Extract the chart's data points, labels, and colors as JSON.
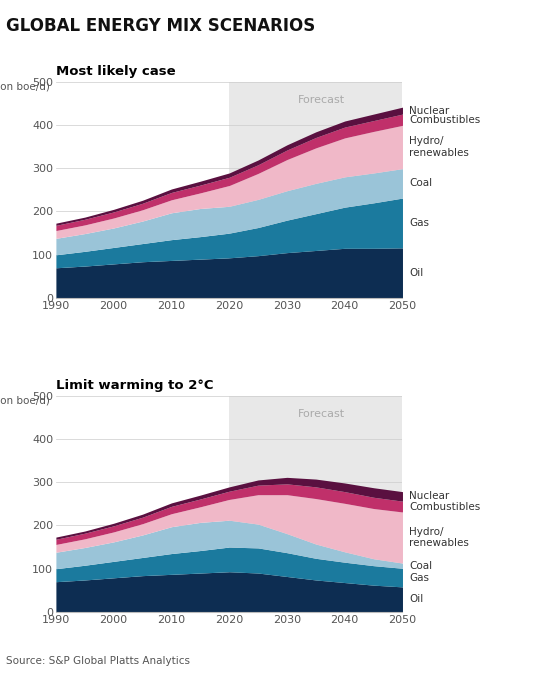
{
  "title": "GLOBAL ENERGY MIX SCENARIOS",
  "chart1_title": "Most likely case",
  "chart2_title": "Limit warming to 2°C",
  "ylabel": "(million boe/d)",
  "source": "Source: S&P Global Platts Analytics",
  "forecast_label": "Forecast",
  "forecast_start": 2020,
  "years": [
    1990,
    1995,
    2000,
    2005,
    2010,
    2015,
    2020,
    2025,
    2030,
    2035,
    2040,
    2045,
    2050
  ],
  "layers": [
    "Oil",
    "Gas",
    "Coal",
    "Hydro/\nrenewables",
    "Combustibles",
    "Nuclear"
  ],
  "colors": [
    "#0d2d52",
    "#1b7a9e",
    "#9ac4d8",
    "#f0b8c8",
    "#c0306a",
    "#5a1040"
  ],
  "chart1_data": {
    "Oil": [
      70,
      74,
      79,
      84,
      87,
      90,
      93,
      98,
      105,
      110,
      115,
      115,
      116
    ],
    "Gas": [
      30,
      34,
      38,
      42,
      48,
      52,
      57,
      65,
      75,
      85,
      95,
      105,
      115
    ],
    "Coal": [
      38,
      41,
      45,
      52,
      62,
      65,
      62,
      65,
      68,
      70,
      70,
      69,
      68
    ],
    "Hydro/\nrenewables": [
      18,
      20,
      23,
      26,
      30,
      36,
      48,
      60,
      72,
      82,
      90,
      96,
      100
    ],
    "Combustibles": [
      12,
      13,
      14,
      15,
      17,
      18,
      19,
      20,
      22,
      24,
      25,
      25,
      26
    ],
    "Nuclear": [
      5,
      5,
      6,
      7,
      8,
      9,
      10,
      11,
      12,
      13,
      14,
      15,
      16
    ]
  },
  "chart2_data": {
    "Oil": [
      70,
      74,
      79,
      84,
      87,
      90,
      93,
      90,
      82,
      74,
      68,
      62,
      58
    ],
    "Gas": [
      30,
      34,
      38,
      42,
      48,
      52,
      57,
      58,
      55,
      50,
      47,
      45,
      43
    ],
    "Coal": [
      38,
      41,
      45,
      52,
      62,
      65,
      62,
      55,
      44,
      33,
      24,
      16,
      12
    ],
    "Hydro/\nrenewables": [
      18,
      20,
      23,
      26,
      30,
      36,
      48,
      68,
      90,
      105,
      112,
      116,
      118
    ],
    "Combustibles": [
      12,
      13,
      14,
      15,
      17,
      18,
      19,
      22,
      25,
      27,
      27,
      26,
      25
    ],
    "Nuclear": [
      5,
      5,
      6,
      7,
      8,
      9,
      10,
      12,
      15,
      18,
      20,
      22,
      22
    ]
  },
  "ylim": [
    0,
    500
  ],
  "yticks": [
    0,
    100,
    200,
    300,
    400,
    500
  ],
  "xticks": [
    1990,
    2000,
    2010,
    2020,
    2030,
    2040,
    2050
  ],
  "background_color": "#ffffff",
  "forecast_bg": "#e8e8e8",
  "label_names": [
    "Nuclear",
    "Combustibles",
    "Hydro/\nrenewables",
    "Coal",
    "Gas",
    "Oil"
  ]
}
